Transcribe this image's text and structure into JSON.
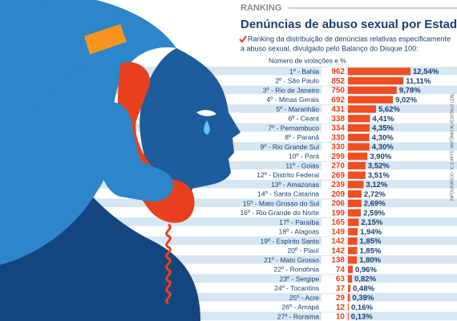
{
  "chart_data": {
    "type": "bar",
    "kicker": "RANKING",
    "title": "Denúncias de abuso sexual por Estado",
    "subtitle": [
      "Ranking da distribuição de denúncias relativas especificamente",
      "a abuso sexual, divulgado pelo Balanço do Disque 100:"
    ],
    "column_label": "Número de violações e %",
    "credit": "INFOGRÁFICO: JC E ARTE: ANTÔNIO ALVES/ITALO LEAL",
    "color": "#f04e23",
    "categories": [
      "1º - Bahia",
      "2º - São Paulo",
      "3º - Rio de Janeiro",
      "4º - Minas Gerais",
      "5º - Maranhão",
      "6º - Ceará",
      "7º - Pernambuco",
      "8º - Paraná",
      "9º - Rio Grande Sul",
      "10º - Pará",
      "11º - Goiás",
      "12º - Distrito Federal",
      "13º - Amazonas",
      "14º - Santa Catarina",
      "15º - Mato Grosso do Sul",
      "16º - Rio Grande do Norte",
      "17º - Paraíba",
      "18º - Alagoas",
      "19º - Espírito Santo",
      "20º - Piauí",
      "21º - Mato Grosso",
      "22º - Rondônia",
      "23º - Sergipe",
      "24º - Tocantins",
      "25º - Acre",
      "26º - Amapá",
      "27º - Roraima"
    ],
    "counts": [
      962,
      852,
      750,
      692,
      431,
      338,
      334,
      330,
      330,
      299,
      270,
      269,
      239,
      209,
      206,
      199,
      165,
      149,
      142,
      142,
      138,
      74,
      63,
      37,
      29,
      12,
      10
    ],
    "values": [
      12.54,
      11.11,
      9.78,
      9.02,
      5.62,
      4.41,
      4.35,
      4.3,
      4.3,
      3.9,
      3.52,
      3.51,
      3.12,
      2.72,
      2.69,
      2.59,
      2.15,
      1.94,
      1.85,
      1.85,
      1.8,
      0.96,
      0.82,
      0.48,
      0.38,
      0.16,
      0.13
    ],
    "value_labels": [
      "12,54%",
      "11,11%",
      "9,78%",
      "9,02%",
      "5,62%",
      "4,41%",
      "4,35%",
      "4,30%",
      "4,30%",
      "3,90%",
      "3,52%",
      "3,51%",
      "3,12%",
      "2,72%",
      "2,69%",
      "2,59%",
      "2,15%",
      "1,94%",
      "1,85%",
      "1,85%",
      "1,80%",
      "0,96%",
      "0,82%",
      "0,48%",
      "0,38%",
      "0,16%",
      "0,13%"
    ]
  }
}
